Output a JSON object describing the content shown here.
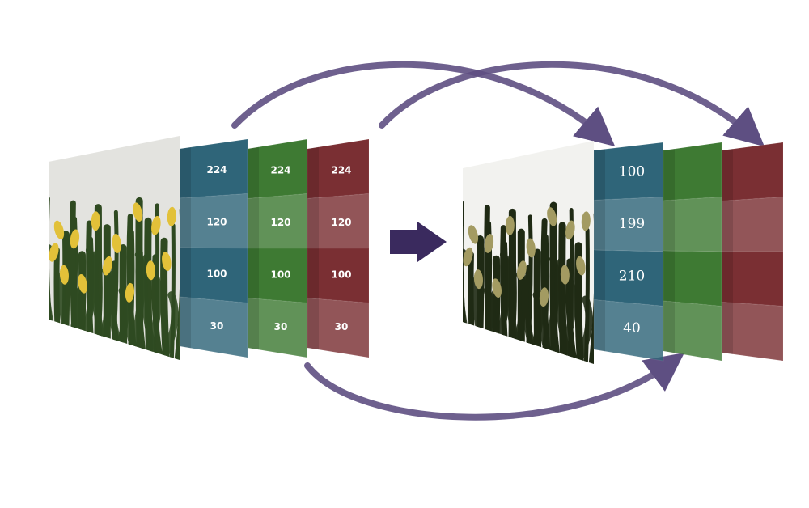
{
  "colors": {
    "blue_channel": "#2f6579",
    "green_channel": "#3e7a33",
    "red_channel": "#7a2f33",
    "arrow": "#5e4f82",
    "center_arrow": "#3a2a5e",
    "photo_background": "#e3e3df",
    "tulip_yellow": "#e2c139",
    "tulip_muted": "#a39b62",
    "leaf_green": "#2f4a21"
  },
  "original": {
    "image_label": "tulip-photo",
    "channels": [
      {
        "name": "blue",
        "values": [
          "224",
          "120",
          "100",
          "30"
        ]
      },
      {
        "name": "green",
        "values": [
          "224",
          "120",
          "100",
          "30"
        ]
      },
      {
        "name": "red",
        "values": [
          "224",
          "120",
          "100",
          "30"
        ]
      }
    ]
  },
  "shuffled": {
    "image_label": "tulip-photo-recolored",
    "channels": [
      {
        "name": "blue",
        "values": [
          "100",
          "199",
          "210",
          "40"
        ]
      },
      {
        "name": "green",
        "values": [
          "",
          "",
          "",
          ""
        ]
      },
      {
        "name": "red",
        "values": [
          "",
          "",
          "",
          ""
        ]
      }
    ]
  },
  "icons": {
    "transform_arrow": "right-arrow-icon",
    "swap_arrows": "curved-arrow-icon"
  }
}
